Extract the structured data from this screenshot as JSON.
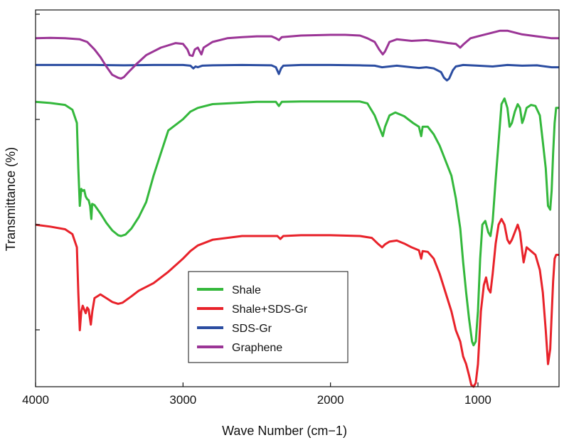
{
  "chart_data": {
    "type": "line",
    "title": "",
    "xlabel": "Wave Number (cm−1)",
    "ylabel": "Transmittance (%)",
    "xlim": [
      4000,
      450
    ],
    "x_reversed": true,
    "x_ticks": [
      4000,
      3000,
      2000,
      1000
    ],
    "x_tick_labels": [
      "4000",
      "3000",
      "2000",
      "1000"
    ],
    "y_ticks_unlabeled": 4,
    "grid": false,
    "legend_position": "bottom-center",
    "series": [
      {
        "name": "Shale",
        "color": "#34b83c",
        "points": [
          [
            4000,
            0.756
          ],
          [
            3900,
            0.753
          ],
          [
            3800,
            0.748
          ],
          [
            3750,
            0.735
          ],
          [
            3720,
            0.7
          ],
          [
            3710,
            0.58
          ],
          [
            3700,
            0.48
          ],
          [
            3690,
            0.525
          ],
          [
            3680,
            0.52
          ],
          [
            3670,
            0.522
          ],
          [
            3660,
            0.505
          ],
          [
            3650,
            0.498
          ],
          [
            3640,
            0.495
          ],
          [
            3630,
            0.48
          ],
          [
            3622,
            0.445
          ],
          [
            3616,
            0.485
          ],
          [
            3600,
            0.482
          ],
          [
            3560,
            0.46
          ],
          [
            3520,
            0.435
          ],
          [
            3480,
            0.415
          ],
          [
            3440,
            0.402
          ],
          [
            3420,
            0.4
          ],
          [
            3390,
            0.404
          ],
          [
            3350,
            0.42
          ],
          [
            3300,
            0.45
          ],
          [
            3250,
            0.49
          ],
          [
            3200,
            0.56
          ],
          [
            3150,
            0.62
          ],
          [
            3100,
            0.68
          ],
          [
            3000,
            0.71
          ],
          [
            2950,
            0.73
          ],
          [
            2900,
            0.74
          ],
          [
            2800,
            0.75
          ],
          [
            2600,
            0.754
          ],
          [
            2500,
            0.756
          ],
          [
            2370,
            0.756
          ],
          [
            2350,
            0.745
          ],
          [
            2330,
            0.756
          ],
          [
            2200,
            0.757
          ],
          [
            2000,
            0.757
          ],
          [
            1800,
            0.757
          ],
          [
            1750,
            0.752
          ],
          [
            1700,
            0.72
          ],
          [
            1660,
            0.68
          ],
          [
            1645,
            0.665
          ],
          [
            1630,
            0.69
          ],
          [
            1600,
            0.72
          ],
          [
            1560,
            0.728
          ],
          [
            1500,
            0.718
          ],
          [
            1440,
            0.7
          ],
          [
            1400,
            0.69
          ],
          [
            1385,
            0.665
          ],
          [
            1375,
            0.69
          ],
          [
            1340,
            0.69
          ],
          [
            1300,
            0.67
          ],
          [
            1260,
            0.64
          ],
          [
            1220,
            0.6
          ],
          [
            1180,
            0.56
          ],
          [
            1150,
            0.5
          ],
          [
            1120,
            0.42
          ],
          [
            1100,
            0.33
          ],
          [
            1080,
            0.25
          ],
          [
            1060,
            0.18
          ],
          [
            1040,
            0.12
          ],
          [
            1030,
            0.11
          ],
          [
            1015,
            0.12
          ],
          [
            1000,
            0.2
          ],
          [
            985,
            0.34
          ],
          [
            970,
            0.43
          ],
          [
            950,
            0.44
          ],
          [
            930,
            0.41
          ],
          [
            915,
            0.4
          ],
          [
            900,
            0.44
          ],
          [
            880,
            0.55
          ],
          [
            860,
            0.65
          ],
          [
            840,
            0.75
          ],
          [
            820,
            0.765
          ],
          [
            800,
            0.74
          ],
          [
            785,
            0.69
          ],
          [
            770,
            0.7
          ],
          [
            750,
            0.73
          ],
          [
            730,
            0.75
          ],
          [
            715,
            0.74
          ],
          [
            700,
            0.7
          ],
          [
            690,
            0.71
          ],
          [
            670,
            0.74
          ],
          [
            640,
            0.748
          ],
          [
            610,
            0.745
          ],
          [
            580,
            0.72
          ],
          [
            560,
            0.65
          ],
          [
            540,
            0.58
          ],
          [
            525,
            0.48
          ],
          [
            510,
            0.47
          ],
          [
            500,
            0.52
          ],
          [
            490,
            0.62
          ],
          [
            480,
            0.7
          ],
          [
            470,
            0.74
          ],
          [
            460,
            0.74
          ],
          [
            450,
            0.74
          ]
        ]
      },
      {
        "name": "Shale+SDS-Gr",
        "color": "#e8222a",
        "points": [
          [
            4000,
            0.43
          ],
          [
            3900,
            0.425
          ],
          [
            3800,
            0.418
          ],
          [
            3750,
            0.405
          ],
          [
            3720,
            0.37
          ],
          [
            3710,
            0.25
          ],
          [
            3700,
            0.15
          ],
          [
            3690,
            0.2
          ],
          [
            3680,
            0.215
          ],
          [
            3670,
            0.205
          ],
          [
            3660,
            0.195
          ],
          [
            3650,
            0.21
          ],
          [
            3640,
            0.205
          ],
          [
            3625,
            0.165
          ],
          [
            3615,
            0.2
          ],
          [
            3600,
            0.235
          ],
          [
            3560,
            0.245
          ],
          [
            3520,
            0.235
          ],
          [
            3480,
            0.225
          ],
          [
            3440,
            0.22
          ],
          [
            3410,
            0.223
          ],
          [
            3350,
            0.24
          ],
          [
            3300,
            0.255
          ],
          [
            3200,
            0.275
          ],
          [
            3100,
            0.305
          ],
          [
            3000,
            0.34
          ],
          [
            2950,
            0.36
          ],
          [
            2900,
            0.375
          ],
          [
            2800,
            0.39
          ],
          [
            2600,
            0.4
          ],
          [
            2500,
            0.4
          ],
          [
            2360,
            0.4
          ],
          [
            2340,
            0.392
          ],
          [
            2320,
            0.4
          ],
          [
            2200,
            0.402
          ],
          [
            2000,
            0.402
          ],
          [
            1800,
            0.4
          ],
          [
            1720,
            0.395
          ],
          [
            1680,
            0.38
          ],
          [
            1650,
            0.37
          ],
          [
            1630,
            0.378
          ],
          [
            1600,
            0.385
          ],
          [
            1550,
            0.388
          ],
          [
            1500,
            0.38
          ],
          [
            1450,
            0.37
          ],
          [
            1400,
            0.362
          ],
          [
            1385,
            0.34
          ],
          [
            1375,
            0.36
          ],
          [
            1340,
            0.358
          ],
          [
            1300,
            0.34
          ],
          [
            1260,
            0.3
          ],
          [
            1220,
            0.25
          ],
          [
            1180,
            0.2
          ],
          [
            1150,
            0.15
          ],
          [
            1120,
            0.12
          ],
          [
            1100,
            0.08
          ],
          [
            1080,
            0.06
          ],
          [
            1060,
            0.03
          ],
          [
            1045,
            0.005
          ],
          [
            1030,
            0.0
          ],
          [
            1015,
            0.01
          ],
          [
            1000,
            0.06
          ],
          [
            980,
            0.2
          ],
          [
            960,
            0.27
          ],
          [
            945,
            0.29
          ],
          [
            930,
            0.26
          ],
          [
            915,
            0.25
          ],
          [
            900,
            0.3
          ],
          [
            880,
            0.38
          ],
          [
            860,
            0.43
          ],
          [
            840,
            0.445
          ],
          [
            820,
            0.43
          ],
          [
            800,
            0.39
          ],
          [
            785,
            0.38
          ],
          [
            770,
            0.39
          ],
          [
            750,
            0.41
          ],
          [
            730,
            0.43
          ],
          [
            715,
            0.41
          ],
          [
            700,
            0.36
          ],
          [
            690,
            0.33
          ],
          [
            670,
            0.37
          ],
          [
            640,
            0.36
          ],
          [
            610,
            0.35
          ],
          [
            580,
            0.31
          ],
          [
            560,
            0.25
          ],
          [
            540,
            0.15
          ],
          [
            525,
            0.06
          ],
          [
            510,
            0.1
          ],
          [
            500,
            0.19
          ],
          [
            490,
            0.28
          ],
          [
            480,
            0.34
          ],
          [
            470,
            0.35
          ],
          [
            460,
            0.35
          ],
          [
            450,
            0.35
          ]
        ]
      },
      {
        "name": "SDS-Gr",
        "color": "#2b4da1",
        "points": [
          [
            4000,
            0.854
          ],
          [
            3800,
            0.854
          ],
          [
            3600,
            0.854
          ],
          [
            3400,
            0.853
          ],
          [
            3200,
            0.854
          ],
          [
            3000,
            0.854
          ],
          [
            2950,
            0.852
          ],
          [
            2930,
            0.845
          ],
          [
            2915,
            0.85
          ],
          [
            2900,
            0.848
          ],
          [
            2870,
            0.852
          ],
          [
            2800,
            0.853
          ],
          [
            2600,
            0.854
          ],
          [
            2400,
            0.853
          ],
          [
            2370,
            0.848
          ],
          [
            2350,
            0.83
          ],
          [
            2335,
            0.845
          ],
          [
            2320,
            0.852
          ],
          [
            2200,
            0.854
          ],
          [
            2000,
            0.854
          ],
          [
            1800,
            0.853
          ],
          [
            1700,
            0.852
          ],
          [
            1650,
            0.848
          ],
          [
            1600,
            0.85
          ],
          [
            1550,
            0.852
          ],
          [
            1500,
            0.85
          ],
          [
            1450,
            0.848
          ],
          [
            1400,
            0.846
          ],
          [
            1350,
            0.848
          ],
          [
            1300,
            0.845
          ],
          [
            1250,
            0.835
          ],
          [
            1230,
            0.82
          ],
          [
            1210,
            0.813
          ],
          [
            1195,
            0.818
          ],
          [
            1170,
            0.84
          ],
          [
            1150,
            0.85
          ],
          [
            1100,
            0.854
          ],
          [
            1000,
            0.852
          ],
          [
            900,
            0.85
          ],
          [
            800,
            0.854
          ],
          [
            700,
            0.852
          ],
          [
            600,
            0.853
          ],
          [
            500,
            0.848
          ],
          [
            450,
            0.848
          ]
        ]
      },
      {
        "name": "Graphene",
        "color": "#9b3596",
        "points": [
          [
            4000,
            0.925
          ],
          [
            3900,
            0.926
          ],
          [
            3800,
            0.925
          ],
          [
            3700,
            0.922
          ],
          [
            3650,
            0.915
          ],
          [
            3600,
            0.895
          ],
          [
            3560,
            0.875
          ],
          [
            3520,
            0.85
          ],
          [
            3480,
            0.828
          ],
          [
            3440,
            0.82
          ],
          [
            3420,
            0.818
          ],
          [
            3400,
            0.822
          ],
          [
            3370,
            0.835
          ],
          [
            3320,
            0.855
          ],
          [
            3250,
            0.88
          ],
          [
            3150,
            0.9
          ],
          [
            3050,
            0.912
          ],
          [
            3000,
            0.91
          ],
          [
            2970,
            0.895
          ],
          [
            2955,
            0.88
          ],
          [
            2935,
            0.878
          ],
          [
            2920,
            0.895
          ],
          [
            2900,
            0.9
          ],
          [
            2875,
            0.882
          ],
          [
            2860,
            0.9
          ],
          [
            2800,
            0.915
          ],
          [
            2700,
            0.925
          ],
          [
            2600,
            0.928
          ],
          [
            2500,
            0.93
          ],
          [
            2400,
            0.93
          ],
          [
            2370,
            0.925
          ],
          [
            2350,
            0.92
          ],
          [
            2330,
            0.928
          ],
          [
            2200,
            0.932
          ],
          [
            2000,
            0.934
          ],
          [
            1900,
            0.934
          ],
          [
            1800,
            0.932
          ],
          [
            1750,
            0.925
          ],
          [
            1700,
            0.915
          ],
          [
            1670,
            0.895
          ],
          [
            1645,
            0.882
          ],
          [
            1630,
            0.89
          ],
          [
            1600,
            0.915
          ],
          [
            1550,
            0.922
          ],
          [
            1450,
            0.918
          ],
          [
            1350,
            0.92
          ],
          [
            1250,
            0.915
          ],
          [
            1200,
            0.912
          ],
          [
            1150,
            0.91
          ],
          [
            1120,
            0.9
          ],
          [
            1100,
            0.908
          ],
          [
            1050,
            0.925
          ],
          [
            1000,
            0.93
          ],
          [
            900,
            0.94
          ],
          [
            850,
            0.945
          ],
          [
            800,
            0.945
          ],
          [
            700,
            0.935
          ],
          [
            600,
            0.93
          ],
          [
            500,
            0.925
          ],
          [
            450,
            0.925
          ]
        ]
      }
    ]
  }
}
